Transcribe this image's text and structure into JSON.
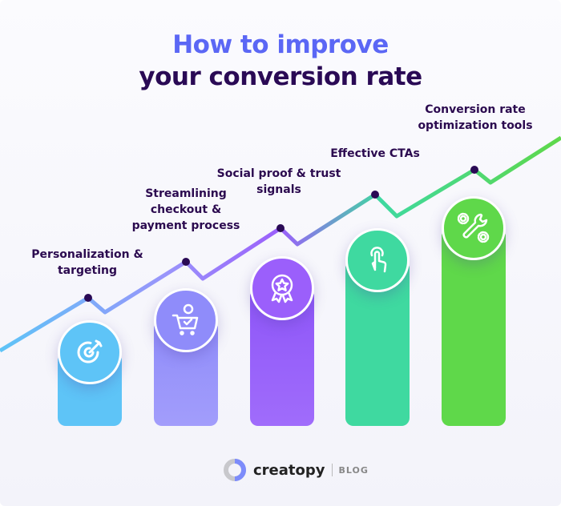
{
  "title": {
    "line1": "How to improve",
    "line2": "your conversion rate"
  },
  "steps": [
    {
      "label": "Personalization & targeting",
      "icon": "target-icon",
      "color": "#5ec4f7"
    },
    {
      "label": "Streamlining checkout & payment process",
      "icon": "shopping-cart-icon",
      "color": "#9a94fb"
    },
    {
      "label": "Social proof & trust signals",
      "icon": "award-badge-icon",
      "color": "#9b5ffb"
    },
    {
      "label": "Effective CTAs",
      "icon": "tap-finger-icon",
      "color": "#3fd9a0"
    },
    {
      "label": "Conversion rate optimization tools",
      "icon": "wrench-gears-icon",
      "color": "#5fd84a"
    }
  ],
  "logo": {
    "brand": "creatopy",
    "section": "BLOG"
  }
}
